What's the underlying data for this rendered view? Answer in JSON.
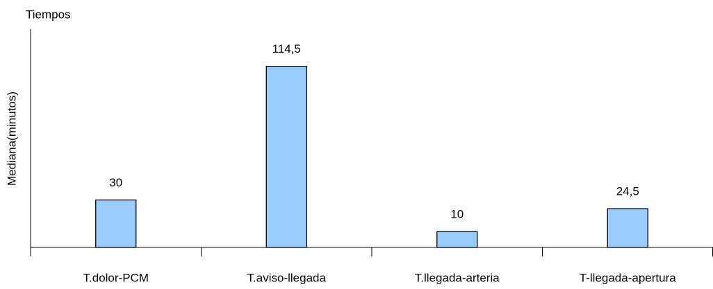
{
  "chart_data": {
    "type": "bar",
    "title": "Tiempos",
    "y_label": "Mediana(minutos)",
    "categories": [
      "T.dolor-PCM",
      "T.aviso-llegada",
      "T.llegada-arteria",
      "T-llegada-apertura"
    ],
    "values": [
      30,
      114.5,
      10,
      24.5
    ],
    "value_labels": [
      "30",
      "114,5",
      "10",
      "24,5"
    ],
    "color": "#99ccff",
    "ylim": [
      0,
      138
    ]
  }
}
